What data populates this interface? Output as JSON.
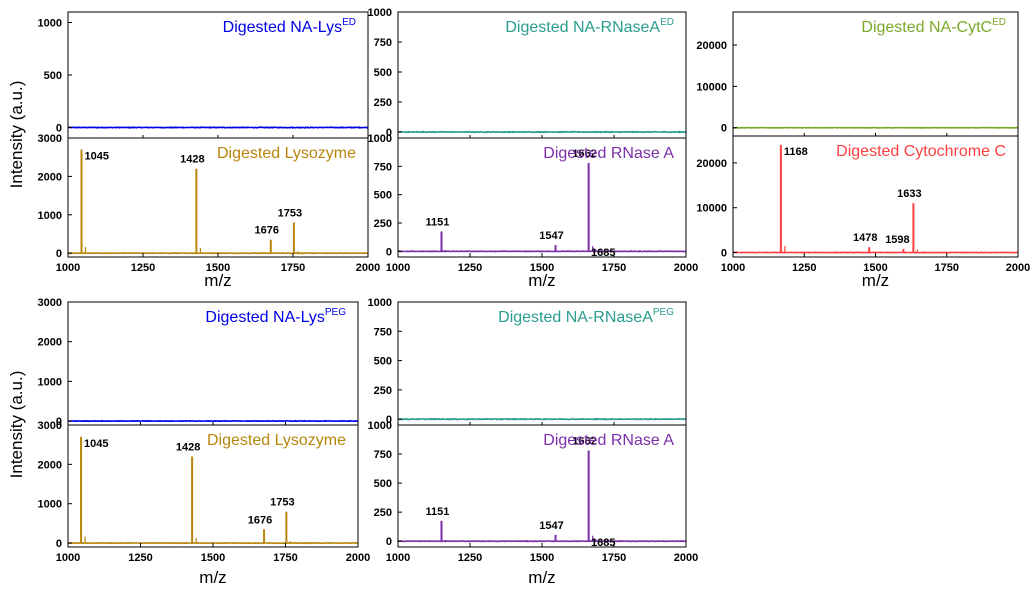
{
  "chart_data": [
    {
      "type": "line",
      "x_axis": {
        "label": "m/z",
        "range": [
          1000,
          2000
        ],
        "ticks": [
          "1000",
          "1250",
          "1500",
          "1750",
          "2000"
        ]
      },
      "y_axis_label": "Intensity (a.u.)",
      "panels": [
        {
          "title": "Digested NA-Lys",
          "title_sup": "ED",
          "color": "#0000e6",
          "ylim": [
            -100,
            1100
          ],
          "yticks": [
            0,
            500,
            1000
          ],
          "baseline": 0,
          "noise": 6,
          "peaks": []
        },
        {
          "title": "Digested Lysozyme",
          "title_sup": "",
          "color": "#b8860b",
          "ylim": [
            -100,
            3000
          ],
          "yticks": [
            0,
            1000,
            2000,
            3000
          ],
          "peaks": [
            {
              "x": 1045,
              "y": 2700,
              "label": "1045"
            },
            {
              "x": 1428,
              "y": 2200,
              "label": "1428"
            },
            {
              "x": 1676,
              "y": 350,
              "label": "1676"
            },
            {
              "x": 1753,
              "y": 800,
              "label": "1753"
            }
          ]
        }
      ]
    },
    {
      "type": "line",
      "x_axis": {
        "label": "m/z",
        "range": [
          1000,
          2000
        ],
        "ticks": [
          "1000",
          "1250",
          "1500",
          "1750",
          "2000"
        ]
      },
      "panels": [
        {
          "title": "Digested NA-RNaseA",
          "title_sup": "ED",
          "color": "#2a9d8f",
          "ylim": [
            -50,
            1000
          ],
          "yticks": [
            0,
            250,
            500,
            750,
            1000
          ],
          "baseline": 0,
          "noise": 6,
          "peaks": []
        },
        {
          "title": "Digested RNase A",
          "title_sup": "",
          "color": "#7b2fa8",
          "ylim": [
            -50,
            1000
          ],
          "yticks": [
            0,
            250,
            500,
            750,
            1000
          ],
          "peaks": [
            {
              "x": 1151,
              "y": 175,
              "label": "1151"
            },
            {
              "x": 1547,
              "y": 55,
              "label": "1547"
            },
            {
              "x": 1662,
              "y": 780,
              "label": "1662"
            },
            {
              "x": 1685,
              "y": 20,
              "label": "1685"
            }
          ]
        }
      ]
    },
    {
      "type": "line",
      "x_axis": {
        "label": "m/z",
        "range": [
          1000,
          2000
        ],
        "ticks": [
          "1000",
          "1250",
          "1500",
          "1750",
          "2000"
        ]
      },
      "panels": [
        {
          "title": "Digested NA-CytC",
          "title_sup": "ED",
          "color": "#7aa82a",
          "ylim": [
            -2000,
            28000
          ],
          "yticks": [
            0,
            10000,
            20000
          ],
          "baseline": 0,
          "noise": 80,
          "peaks": []
        },
        {
          "title": "Digested Cytochrome C",
          "title_sup": "",
          "color": "#ff4040",
          "ylim": [
            -1000,
            26000
          ],
          "yticks": [
            0,
            10000,
            20000
          ],
          "peaks": [
            {
              "x": 1168,
              "y": 24000,
              "label": "1168"
            },
            {
              "x": 1478,
              "y": 1200,
              "label": "1478"
            },
            {
              "x": 1598,
              "y": 800,
              "label": "1598"
            },
            {
              "x": 1633,
              "y": 11000,
              "label": "1633"
            }
          ]
        }
      ]
    },
    {
      "type": "line",
      "x_axis": {
        "label": "m/z",
        "range": [
          1000,
          2000
        ],
        "ticks": [
          "1000",
          "1250",
          "1500",
          "1750",
          "2000"
        ]
      },
      "y_axis_label": "Intensity (a.u.)",
      "panels": [
        {
          "title": "Digested NA-Lys",
          "title_sup": "PEG",
          "color": "#0000e6",
          "ylim": [
            -100,
            3000
          ],
          "yticks": [
            0,
            1000,
            2000,
            3000
          ],
          "baseline": 0,
          "noise": 12,
          "peaks": []
        },
        {
          "title": "Digested Lysozyme",
          "title_sup": "",
          "color": "#b8860b",
          "ylim": [
            -100,
            3000
          ],
          "yticks": [
            0,
            1000,
            2000,
            3000
          ],
          "peaks": [
            {
              "x": 1045,
              "y": 2700,
              "label": "1045"
            },
            {
              "x": 1428,
              "y": 2200,
              "label": "1428"
            },
            {
              "x": 1676,
              "y": 350,
              "label": "1676"
            },
            {
              "x": 1753,
              "y": 800,
              "label": "1753"
            }
          ]
        }
      ]
    },
    {
      "type": "line",
      "x_axis": {
        "label": "m/z",
        "range": [
          1000,
          2000
        ],
        "ticks": [
          "1000",
          "1250",
          "1500",
          "1750",
          "2000"
        ]
      },
      "panels": [
        {
          "title": "Digested NA-RNaseA",
          "title_sup": "PEG",
          "color": "#2a9d8f",
          "ylim": [
            -50,
            1000
          ],
          "yticks": [
            0,
            250,
            500,
            750,
            1000
          ],
          "baseline": 0,
          "noise": 6,
          "peaks": []
        },
        {
          "title": "Digested RNase A",
          "title_sup": "",
          "color": "#7b2fa8",
          "ylim": [
            -50,
            1000
          ],
          "yticks": [
            0,
            250,
            500,
            750,
            1000
          ],
          "peaks": [
            {
              "x": 1151,
              "y": 175,
              "label": "1151"
            },
            {
              "x": 1547,
              "y": 55,
              "label": "1547"
            },
            {
              "x": 1662,
              "y": 780,
              "label": "1662"
            },
            {
              "x": 1685,
              "y": 20,
              "label": "1685"
            }
          ]
        }
      ]
    }
  ]
}
